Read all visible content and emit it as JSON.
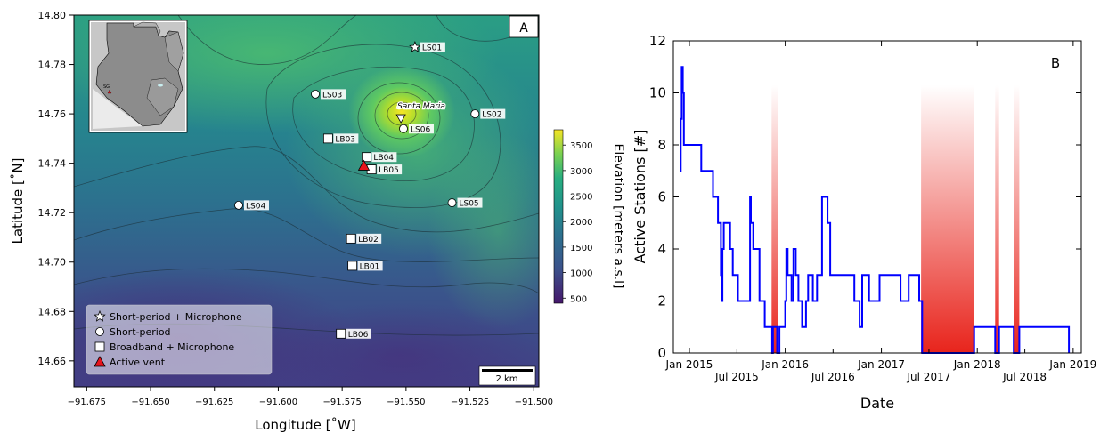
{
  "map_panel": {
    "panel_label": "A",
    "xlabel": "Longitude [˚W]",
    "ylabel": "Latitude [˚N]",
    "x_ticks": [
      "−91.675",
      "−91.650",
      "−91.625",
      "−91.600",
      "−91.575",
      "−91.550",
      "−91.525",
      "−91.500"
    ],
    "y_ticks": [
      "14.80",
      "14.78",
      "14.76",
      "14.74",
      "14.72",
      "14.70",
      "14.68",
      "14.66"
    ],
    "colorbar_label": "Elevation [meters a.s.l]",
    "colorbar_ticks": [
      "3500",
      "3000",
      "2500",
      "2000",
      "1500",
      "1000",
      "500"
    ],
    "scale_bar_label": "2 km",
    "volcano_label": "Santa Maria",
    "inset_label": "SG",
    "legend": [
      {
        "symbol": "star",
        "label": "Short-period + Microphone"
      },
      {
        "symbol": "circle",
        "label": "Short-period"
      },
      {
        "symbol": "square",
        "label": "Broadband + Microphone"
      },
      {
        "symbol": "triangle",
        "label": "Active vent"
      }
    ],
    "stations": [
      {
        "id": "LS01",
        "type": "star",
        "lon": -91.5465,
        "lat": 14.787
      },
      {
        "id": "LS02",
        "type": "circle",
        "lon": -91.523,
        "lat": 14.76
      },
      {
        "id": "LS03",
        "type": "circle",
        "lon": -91.5855,
        "lat": 14.768
      },
      {
        "id": "LS04",
        "type": "circle",
        "lon": -91.6155,
        "lat": 14.723
      },
      {
        "id": "LS05",
        "type": "circle",
        "lon": -91.532,
        "lat": 14.724
      },
      {
        "id": "LS06",
        "type": "circle",
        "lon": -91.551,
        "lat": 14.754
      },
      {
        "id": "LB01",
        "type": "square",
        "lon": -91.571,
        "lat": 14.6985
      },
      {
        "id": "LB02",
        "type": "square",
        "lon": -91.5715,
        "lat": 14.7095
      },
      {
        "id": "LB03",
        "type": "square",
        "lon": -91.5805,
        "lat": 14.75
      },
      {
        "id": "LB04",
        "type": "square",
        "lon": -91.5655,
        "lat": 14.7425
      },
      {
        "id": "LB05",
        "type": "square",
        "lon": -91.5635,
        "lat": 14.7375
      },
      {
        "id": "LB06",
        "type": "square",
        "lon": -91.5755,
        "lat": 14.671
      }
    ],
    "vent": {
      "lon": -91.5665,
      "lat": 14.739
    },
    "summit": {
      "lon": -91.552,
      "lat": 14.7575
    },
    "colors": {
      "vent": "#e8141c",
      "low": "#45176b",
      "mid": "#26848e",
      "high": "#f6e526"
    }
  },
  "chart_data": {
    "type": "line",
    "panel_label": "B",
    "xlabel": "Date",
    "ylabel": "Active Stations [#]",
    "ylim": [
      0,
      12
    ],
    "y_ticks": [
      "0",
      "2",
      "4",
      "6",
      "8",
      "10",
      "12"
    ],
    "x_ticks_top": [
      "Jan 2015",
      "Jan 2016",
      "Jan 2017",
      "Jan 2018",
      "Jan 2019"
    ],
    "x_ticks_bottom": [
      "Jul 2015",
      "Jul 2016",
      "Jul 2017",
      "Jul 2018"
    ],
    "xlim": [
      "2014-11-01",
      "2019-02-01"
    ],
    "line_color": "#0000ff",
    "shade_color": "#e8241c",
    "shaded_periods": [
      [
        "2015-11-10",
        "2015-12-05"
      ],
      [
        "2017-06-01",
        "2017-12-20"
      ],
      [
        "2018-03-10",
        "2018-03-25"
      ],
      [
        "2018-05-20",
        "2018-06-10"
      ]
    ],
    "series": [
      {
        "x": [
          "2014-11-25",
          "2014-11-29",
          "2014-12-03",
          "2014-12-07",
          "2014-12-11",
          "2015-01-10",
          "2015-02-15",
          "2015-04-01",
          "2015-04-20",
          "2015-05-01",
          "2015-05-05",
          "2015-05-07",
          "2015-05-12",
          "2015-06-05",
          "2015-06-15",
          "2015-07-05",
          "2015-08-20",
          "2015-08-23",
          "2015-09-01",
          "2015-09-25",
          "2015-10-15",
          "2015-11-12",
          "2015-11-15",
          "2015-12-01",
          "2015-12-10",
          "2016-01-01",
          "2016-01-05",
          "2016-01-10",
          "2016-01-25",
          "2016-02-01",
          "2016-02-10",
          "2016-02-20",
          "2016-03-05",
          "2016-03-20",
          "2016-03-28",
          "2016-04-15",
          "2016-05-01",
          "2016-05-20",
          "2016-06-10",
          "2016-06-20",
          "2016-07-01",
          "2016-07-20",
          "2016-09-20",
          "2016-10-10",
          "2016-10-20",
          "2016-11-15",
          "2016-11-25",
          "2016-12-25",
          "2017-01-10",
          "2017-03-15",
          "2017-04-01",
          "2017-04-15",
          "2017-05-25",
          "2017-06-05",
          "2017-12-20",
          "2018-03-10",
          "2018-03-25",
          "2018-05-20",
          "2018-06-10",
          "2018-12-15",
          "2018-12-16"
        ],
        "y": [
          7,
          9,
          11,
          10,
          8,
          8,
          7,
          6,
          5,
          3,
          2,
          4,
          5,
          4,
          3,
          2,
          6,
          5,
          4,
          2,
          1,
          0,
          1,
          0,
          1,
          2,
          4,
          3,
          2,
          4,
          3,
          2,
          1,
          2,
          3,
          2,
          3,
          6,
          5,
          3,
          3,
          3,
          2,
          1,
          3,
          2,
          2,
          3,
          3,
          2,
          2,
          3,
          2,
          0,
          1,
          0,
          1,
          0,
          1,
          1,
          0
        ]
      }
    ]
  }
}
